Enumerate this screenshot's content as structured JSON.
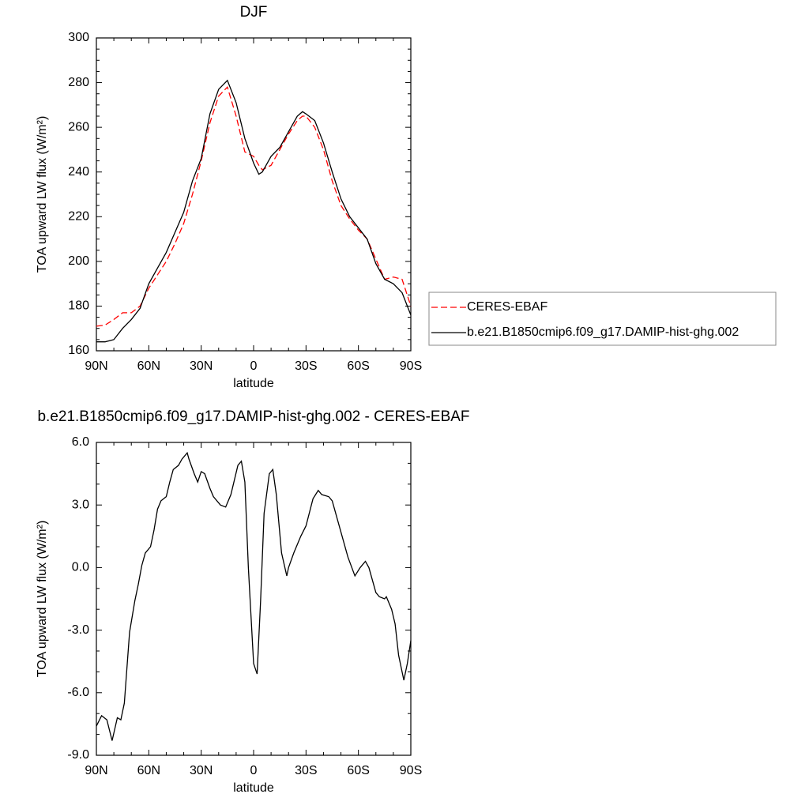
{
  "chart_data": [
    {
      "type": "line",
      "title": "DJF",
      "xlabel": "latitude",
      "ylabel": "TOA upward LW flux (W/m²)",
      "x": [
        90,
        85,
        80,
        75,
        70,
        65,
        60,
        55,
        50,
        45,
        40,
        35,
        30,
        25,
        20,
        15,
        10,
        5,
        0,
        -3,
        -5,
        -10,
        -15,
        -20,
        -25,
        -28,
        -30,
        -35,
        -40,
        -45,
        -50,
        -55,
        -60,
        -65,
        -70,
        -75,
        -80,
        -85,
        -90
      ],
      "xlim": [
        90,
        -90
      ],
      "xticks": [
        {
          "value": 90,
          "label": "90N"
        },
        {
          "value": 60,
          "label": "60N"
        },
        {
          "value": 30,
          "label": "30N"
        },
        0,
        {
          "value": -30,
          "label": "30S"
        },
        {
          "value": -60,
          "label": "60S"
        },
        {
          "value": -90,
          "label": "90S"
        }
      ],
      "ylim": [
        160,
        300
      ],
      "yticks": [
        160,
        180,
        200,
        220,
        240,
        260,
        280,
        300
      ],
      "legend": "right",
      "series": [
        {
          "name": "CERES-EBAF",
          "color": "#ff0000",
          "dash": "dashed",
          "values": [
            171,
            171.5,
            174,
            177,
            177,
            180,
            188,
            194,
            200,
            208,
            217,
            230,
            245,
            262,
            274,
            278,
            265,
            249,
            247,
            243,
            241,
            243,
            250,
            257,
            263,
            265,
            265,
            260,
            250,
            236,
            225,
            219,
            214,
            210,
            201,
            192,
            193,
            192,
            180
          ]
        },
        {
          "name": "b.e21.B1850cmip6.f09_g17.DAMIP-hist-ghg.002",
          "color": "#000000",
          "values": [
            164,
            164,
            165,
            170,
            174,
            179,
            190,
            197,
            204,
            213,
            222,
            236,
            246,
            266,
            277,
            281,
            271,
            255,
            244,
            239,
            240,
            247,
            251,
            258,
            265,
            267,
            266,
            263,
            253,
            240,
            228,
            220,
            215,
            210,
            199,
            192,
            190,
            186,
            176
          ]
        }
      ]
    },
    {
      "type": "line",
      "title": "b.e21.B1850cmip6.f09_g17.DAMIP-hist-ghg.002 - CERES-EBAF",
      "xlabel": "latitude",
      "ylabel": "TOA upward LW flux (W/m²)",
      "x": [
        90,
        87,
        84,
        81,
        78,
        76,
        74,
        71,
        68,
        66,
        64,
        62,
        59,
        57,
        55,
        53,
        50,
        48,
        46,
        43,
        41,
        38,
        37,
        34,
        32,
        30,
        28,
        25,
        23,
        19,
        16,
        13,
        9,
        7,
        5,
        3,
        0,
        -2,
        -4,
        -6,
        -9,
        -11,
        -13,
        -16,
        -19,
        -20,
        -23,
        -27,
        -30,
        -34,
        -37,
        -39,
        -43,
        -45,
        -49,
        -54,
        -58,
        -61,
        -64,
        -66,
        -70,
        -72,
        -75,
        -76,
        -79,
        -81,
        -83,
        -86,
        -88,
        -90
      ],
      "xlim": [
        90,
        -90
      ],
      "xticks": [
        {
          "value": 90,
          "label": "90N"
        },
        {
          "value": 60,
          "label": "60N"
        },
        {
          "value": 30,
          "label": "30N"
        },
        0,
        {
          "value": -30,
          "label": "30S"
        },
        {
          "value": -60,
          "label": "60S"
        },
        {
          "value": -90,
          "label": "90S"
        }
      ],
      "ylim": [
        -9,
        6
      ],
      "yticks": [
        {
          "value": -9,
          "label": "-9.0"
        },
        {
          "value": -6,
          "label": "-6.0"
        },
        {
          "value": -3,
          "label": "-3.0"
        },
        {
          "value": 0,
          "label": "0.0"
        },
        {
          "value": 3,
          "label": "3.0"
        },
        {
          "value": 6,
          "label": "6.0"
        }
      ],
      "series": [
        {
          "color": "#000000",
          "values": [
            -7.6,
            -7.1,
            -7.3,
            -8.3,
            -7.2,
            -7.3,
            -6.5,
            -3.1,
            -1.6,
            -0.8,
            0.1,
            0.7,
            1.0,
            1.8,
            2.8,
            3.2,
            3.4,
            4.1,
            4.7,
            4.9,
            5.2,
            5.5,
            5.2,
            4.5,
            4.1,
            4.6,
            4.5,
            3.8,
            3.4,
            3.0,
            2.9,
            3.5,
            4.9,
            5.1,
            4.1,
            0.0,
            -4.6,
            -5.1,
            -1.6,
            2.6,
            4.5,
            4.7,
            3.5,
            0.7,
            -0.4,
            0.0,
            0.7,
            1.5,
            2.0,
            3.3,
            3.7,
            3.5,
            3.4,
            3.2,
            2.0,
            0.5,
            -0.4,
            0.0,
            0.3,
            0.0,
            -1.2,
            -1.4,
            -1.5,
            -1.4,
            -2.0,
            -2.7,
            -4.2,
            -5.4,
            -4.6,
            -3.5
          ]
        }
      ]
    }
  ]
}
